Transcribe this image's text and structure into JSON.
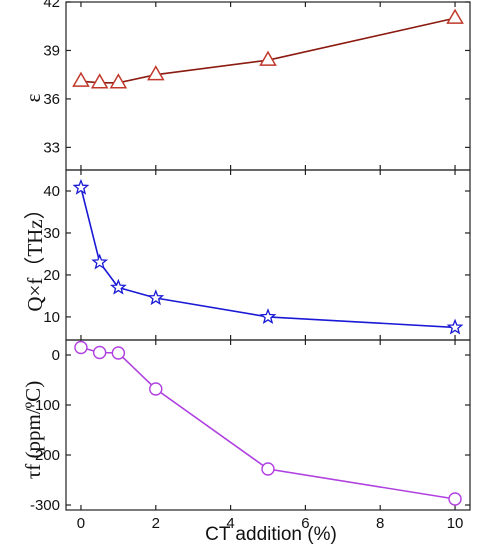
{
  "chart_data": {
    "type": "line",
    "layout": "three vertically stacked panels sharing one x axis",
    "xlabel": "CT addition (%)",
    "xlim": [
      -0.4,
      10.4
    ],
    "xticks": [
      0,
      2,
      4,
      6,
      8,
      10
    ],
    "x_tick_labels": [
      "0",
      "2",
      "4",
      "6",
      "8",
      "10"
    ],
    "panels": [
      {
        "ylabel": "ε",
        "ylim": [
          31.6,
          42
        ],
        "yticks": [
          33,
          36,
          39,
          42
        ],
        "y_tick_labels": [
          "33",
          "36",
          "39",
          "42"
        ],
        "series": [
          {
            "marker": "triangle",
            "line_color": "#8b1a10",
            "marker_color": "#c0392b",
            "x": [
              0,
              0.5,
              1,
              2,
              5,
              10
            ],
            "values": [
              37.1,
              37.0,
              37.0,
              37.5,
              38.4,
              41.0
            ]
          }
        ]
      },
      {
        "ylabel": "Q×f（THz）",
        "ylim": [
          4.5,
          45
        ],
        "yticks": [
          10,
          20,
          30,
          40
        ],
        "y_tick_labels": [
          "10",
          "20",
          "30",
          "40"
        ],
        "series": [
          {
            "marker": "star",
            "line_color": "#1a1ad6",
            "marker_color": "#1a1ad6",
            "x": [
              0,
              0.5,
              1,
              2,
              5,
              10
            ],
            "values": [
              40.8,
              23.0,
              17.0,
              14.5,
              10.0,
              7.5
            ]
          }
        ]
      },
      {
        "ylabel": "τf (ppm/ºC)",
        "ylim": [
          -310,
          30
        ],
        "yticks": [
          0,
          -100,
          -200,
          -300
        ],
        "y_tick_labels": [
          "0",
          "-100",
          "-200",
          "-300"
        ],
        "series": [
          {
            "marker": "circle",
            "line_color": "#b040e0",
            "marker_color": "#b040e0",
            "x": [
              0,
              0.5,
              1,
              2,
              5,
              10
            ],
            "values": [
              15,
              5,
              4,
              -68,
              -228,
              -288
            ]
          }
        ]
      }
    ]
  }
}
